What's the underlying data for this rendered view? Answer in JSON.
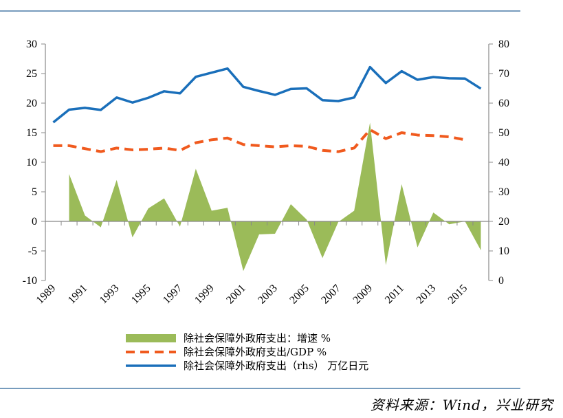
{
  "source": "资料来源：Wind，兴业研究",
  "chart_data": {
    "type": "area",
    "x": [
      1989,
      1990,
      1991,
      1992,
      1993,
      1994,
      1995,
      1996,
      1997,
      1998,
      1999,
      2000,
      2001,
      2002,
      2003,
      2004,
      2005,
      2006,
      2007,
      2008,
      2009,
      2010,
      2011,
      2012,
      2013,
      2014,
      2015,
      2016
    ],
    "x_tick_labels": [
      "1989",
      "1991",
      "1993",
      "1995",
      "1997",
      "1999",
      "2001",
      "2003",
      "2005",
      "2007",
      "2009",
      "2011",
      "2013",
      "2015"
    ],
    "y_left": {
      "lim": [
        -10,
        30
      ],
      "ticks": [
        "-10",
        "-5",
        "0",
        "5",
        "10",
        "15",
        "20",
        "25",
        "30"
      ]
    },
    "y_right": {
      "lim": [
        0,
        80
      ],
      "ticks": [
        "0",
        "10",
        "20",
        "30",
        "40",
        "50",
        "60",
        "70",
        "80"
      ]
    },
    "grid": false,
    "legend_position": "bottom",
    "series": [
      {
        "name": "除社会保障外政府支出：增速 %",
        "style": "area",
        "axis": "left",
        "color": "#9bbb59",
        "values": [
          null,
          8.0,
          1.0,
          -1.0,
          7.0,
          -2.7,
          2.2,
          3.9,
          -0.9,
          8.9,
          1.8,
          2.3,
          -8.4,
          -2.2,
          -2.1,
          2.9,
          0.3,
          -6.2,
          -0.1,
          1.8,
          16.7,
          -7.4,
          6.3,
          -4.4,
          1.5,
          -0.5,
          0.0,
          -4.9
        ]
      },
      {
        "name": "除社会保障外政府支出/GDP %",
        "style": "dashed",
        "axis": "left",
        "color": "#f05a1e",
        "values": [
          12.8,
          12.8,
          12.3,
          11.8,
          12.4,
          12.1,
          12.2,
          12.4,
          12.0,
          13.3,
          13.8,
          14.1,
          13.0,
          12.8,
          12.6,
          12.8,
          12.7,
          12.0,
          11.8,
          12.4,
          15.5,
          14.0,
          15.0,
          14.6,
          14.5,
          14.3,
          13.8,
          null
        ]
      },
      {
        "name": "除社会保障外政府支出（rhs） 万亿日元",
        "style": "line",
        "axis": "right",
        "color": "#1a6fba",
        "values": [
          53.5,
          57.8,
          58.4,
          57.7,
          61.9,
          60.2,
          61.8,
          64.0,
          63.3,
          68.9,
          70.3,
          71.7,
          65.5,
          64.1,
          62.8,
          64.8,
          65.0,
          61.0,
          60.7,
          61.9,
          72.2,
          66.8,
          70.8,
          67.9,
          68.8,
          68.4,
          68.3,
          64.9
        ]
      }
    ]
  }
}
